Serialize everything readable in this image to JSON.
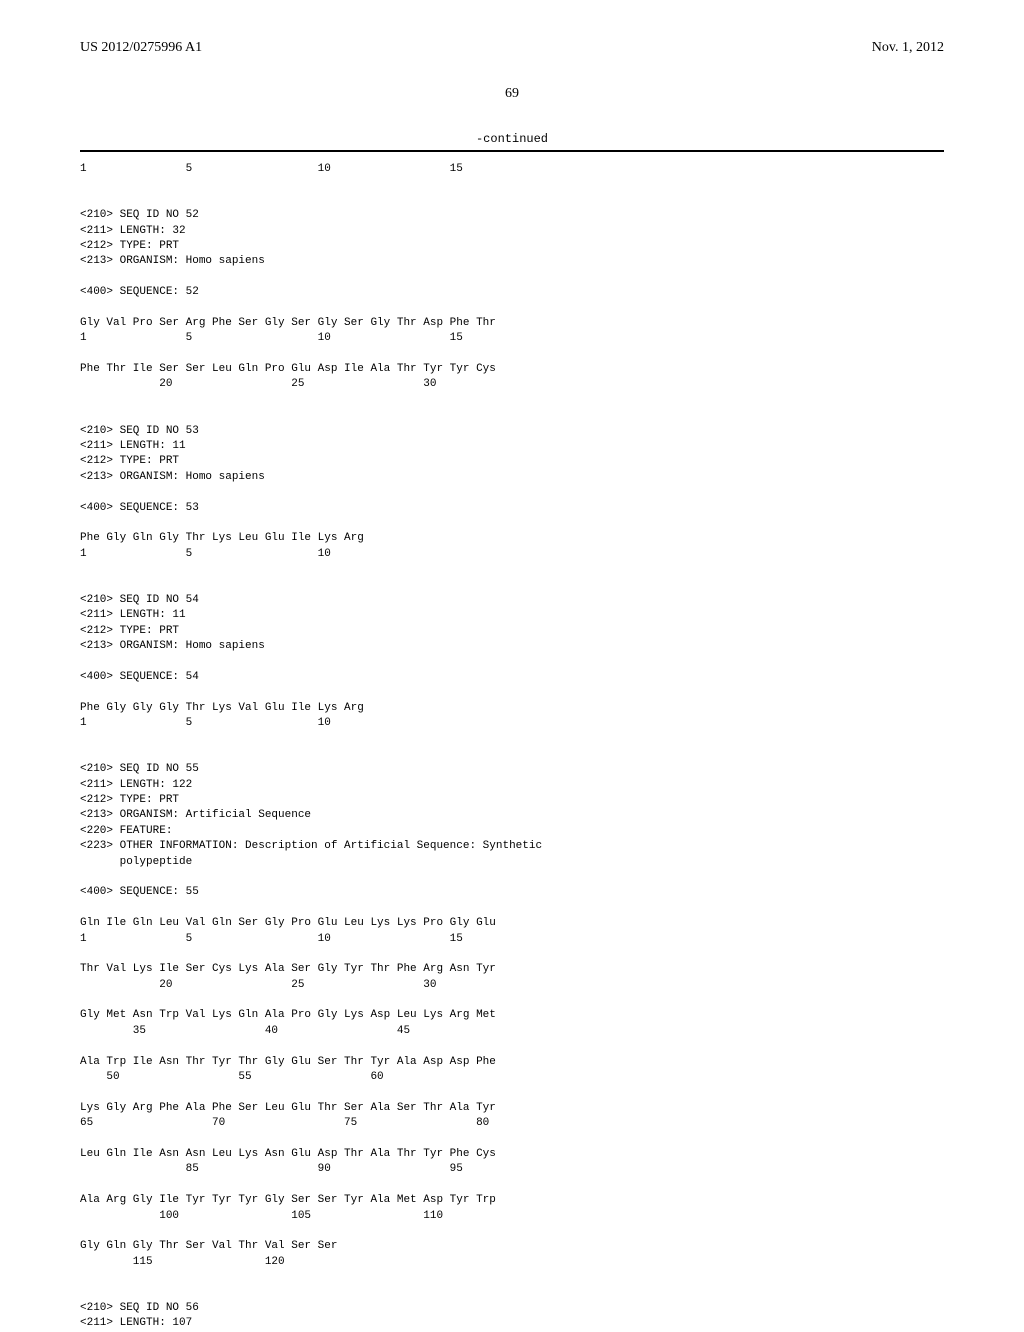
{
  "header": {
    "publication_number": "US 2012/0275996 A1",
    "date": "Nov. 1, 2012"
  },
  "page_number": "69",
  "continued_label": "-continued",
  "sequence_text": "1               5                   10                  15\n\n\n<210> SEQ ID NO 52\n<211> LENGTH: 32\n<212> TYPE: PRT\n<213> ORGANISM: Homo sapiens\n\n<400> SEQUENCE: 52\n\nGly Val Pro Ser Arg Phe Ser Gly Ser Gly Ser Gly Thr Asp Phe Thr\n1               5                   10                  15\n\nPhe Thr Ile Ser Ser Leu Gln Pro Glu Asp Ile Ala Thr Tyr Tyr Cys\n            20                  25                  30\n\n\n<210> SEQ ID NO 53\n<211> LENGTH: 11\n<212> TYPE: PRT\n<213> ORGANISM: Homo sapiens\n\n<400> SEQUENCE: 53\n\nPhe Gly Gln Gly Thr Lys Leu Glu Ile Lys Arg\n1               5                   10\n\n\n<210> SEQ ID NO 54\n<211> LENGTH: 11\n<212> TYPE: PRT\n<213> ORGANISM: Homo sapiens\n\n<400> SEQUENCE: 54\n\nPhe Gly Gly Gly Thr Lys Val Glu Ile Lys Arg\n1               5                   10\n\n\n<210> SEQ ID NO 55\n<211> LENGTH: 122\n<212> TYPE: PRT\n<213> ORGANISM: Artificial Sequence\n<220> FEATURE:\n<223> OTHER INFORMATION: Description of Artificial Sequence: Synthetic\n      polypeptide\n\n<400> SEQUENCE: 55\n\nGln Ile Gln Leu Val Gln Ser Gly Pro Glu Leu Lys Lys Pro Gly Glu\n1               5                   10                  15\n\nThr Val Lys Ile Ser Cys Lys Ala Ser Gly Tyr Thr Phe Arg Asn Tyr\n            20                  25                  30\n\nGly Met Asn Trp Val Lys Gln Ala Pro Gly Lys Asp Leu Lys Arg Met\n        35                  40                  45\n\nAla Trp Ile Asn Thr Tyr Thr Gly Glu Ser Thr Tyr Ala Asp Asp Phe\n    50                  55                  60\n\nLys Gly Arg Phe Ala Phe Ser Leu Glu Thr Ser Ala Ser Thr Ala Tyr\n65                  70                  75                  80\n\nLeu Gln Ile Asn Asn Leu Lys Asn Glu Asp Thr Ala Thr Tyr Phe Cys\n                85                  90                  95\n\nAla Arg Gly Ile Tyr Tyr Tyr Gly Ser Ser Tyr Ala Met Asp Tyr Trp\n            100                 105                 110\n\nGly Gln Gly Thr Ser Val Thr Val Ser Ser\n        115                 120\n\n\n<210> SEQ ID NO 56\n<211> LENGTH: 107"
}
